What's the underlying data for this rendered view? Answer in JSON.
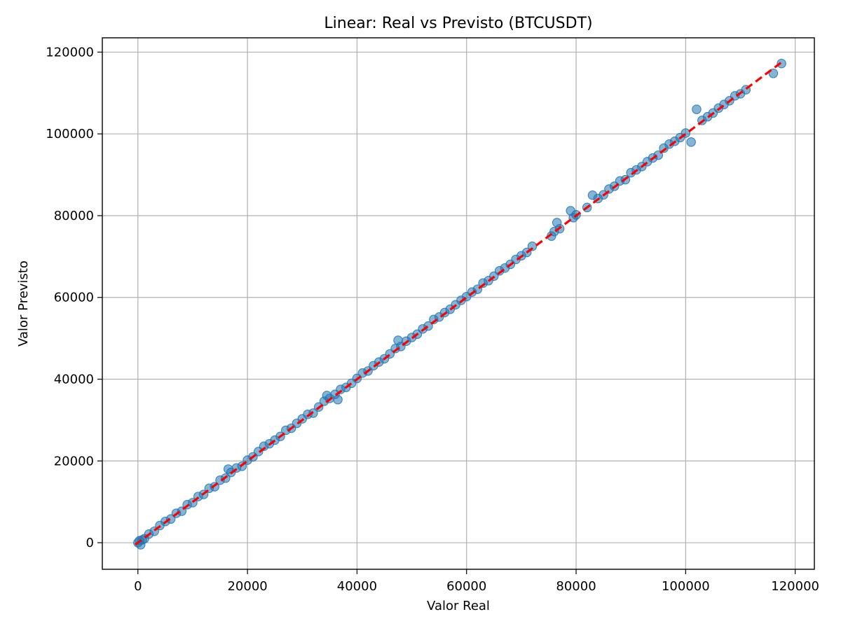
{
  "chart_data": {
    "type": "scatter",
    "title": "Linear: Real vs Previsto (BTCUSDT)",
    "xlabel": "Valor Real",
    "ylabel": "Valor Previsto",
    "xlim": [
      -6500,
      123500
    ],
    "ylim": [
      -6500,
      123500
    ],
    "xticks": [
      0,
      20000,
      40000,
      60000,
      80000,
      100000,
      120000
    ],
    "yticks": [
      0,
      20000,
      40000,
      60000,
      80000,
      100000,
      120000
    ],
    "xtick_labels": [
      "0",
      "20000",
      "40000",
      "60000",
      "80000",
      "100000",
      "120000"
    ],
    "ytick_labels": [
      "0",
      "20000",
      "40000",
      "60000",
      "80000",
      "100000",
      "120000"
    ],
    "grid": true,
    "colors": {
      "points": "#1f77b4",
      "reference_line": "#ff0000"
    },
    "series": [
      {
        "kind": "points",
        "points": [
          [
            0,
            0
          ],
          [
            300,
            500
          ],
          [
            500,
            -500
          ],
          [
            800,
            700
          ],
          [
            1200,
            1000
          ],
          [
            2000,
            2100
          ],
          [
            3000,
            2800
          ],
          [
            4000,
            4200
          ],
          [
            5000,
            5200
          ],
          [
            6000,
            5800
          ],
          [
            7000,
            7200
          ],
          [
            8000,
            7700
          ],
          [
            9000,
            9300
          ],
          [
            10000,
            9800
          ],
          [
            11000,
            11300
          ],
          [
            12000,
            11800
          ],
          [
            13000,
            13300
          ],
          [
            14000,
            13700
          ],
          [
            15000,
            15300
          ],
          [
            16000,
            15800
          ],
          [
            16500,
            18000
          ],
          [
            17000,
            17200
          ],
          [
            18000,
            18300
          ],
          [
            19000,
            18700
          ],
          [
            20000,
            20200
          ],
          [
            21000,
            21000
          ],
          [
            22000,
            22300
          ],
          [
            23000,
            23600
          ],
          [
            24000,
            24200
          ],
          [
            25000,
            25100
          ],
          [
            26000,
            26000
          ],
          [
            27000,
            27500
          ],
          [
            28000,
            28000
          ],
          [
            29000,
            29200
          ],
          [
            30000,
            30300
          ],
          [
            31000,
            31400
          ],
          [
            32000,
            31700
          ],
          [
            33000,
            33200
          ],
          [
            34000,
            34600
          ],
          [
            34500,
            36000
          ],
          [
            35000,
            35300
          ],
          [
            36000,
            36300
          ],
          [
            36500,
            35000
          ],
          [
            37000,
            37500
          ],
          [
            38000,
            38000
          ],
          [
            39000,
            39000
          ],
          [
            40000,
            40200
          ],
          [
            41000,
            41500
          ],
          [
            42000,
            42000
          ],
          [
            43000,
            43300
          ],
          [
            44000,
            44200
          ],
          [
            45000,
            45000
          ],
          [
            46000,
            46200
          ],
          [
            47000,
            47500
          ],
          [
            47500,
            49500
          ],
          [
            48000,
            48000
          ],
          [
            49000,
            49300
          ],
          [
            50000,
            50200
          ],
          [
            51000,
            51000
          ],
          [
            52000,
            52300
          ],
          [
            53000,
            53000
          ],
          [
            54000,
            54600
          ],
          [
            55000,
            55200
          ],
          [
            56000,
            56300
          ],
          [
            57000,
            57100
          ],
          [
            58000,
            58200
          ],
          [
            59000,
            59300
          ],
          [
            60000,
            60200
          ],
          [
            61000,
            61300
          ],
          [
            62000,
            62000
          ],
          [
            63000,
            63500
          ],
          [
            64000,
            64100
          ],
          [
            65000,
            65200
          ],
          [
            66000,
            66500
          ],
          [
            67000,
            67200
          ],
          [
            68000,
            68100
          ],
          [
            69000,
            69300
          ],
          [
            70000,
            70200
          ],
          [
            71000,
            71000
          ],
          [
            72000,
            72500
          ],
          [
            75500,
            75000
          ],
          [
            76000,
            76100
          ],
          [
            76500,
            78300
          ],
          [
            77000,
            76800
          ],
          [
            79000,
            81200
          ],
          [
            79500,
            79500
          ],
          [
            80000,
            80200
          ],
          [
            82000,
            82000
          ],
          [
            83000,
            85000
          ],
          [
            84000,
            84200
          ],
          [
            85000,
            85100
          ],
          [
            86000,
            86500
          ],
          [
            87000,
            87200
          ],
          [
            88000,
            88500
          ],
          [
            89000,
            88800
          ],
          [
            90000,
            90500
          ],
          [
            91000,
            91200
          ],
          [
            92000,
            92000
          ],
          [
            93000,
            93200
          ],
          [
            94000,
            94100
          ],
          [
            95000,
            94800
          ],
          [
            96000,
            96500
          ],
          [
            97000,
            97500
          ],
          [
            98000,
            98200
          ],
          [
            99000,
            99100
          ],
          [
            100000,
            100200
          ],
          [
            101000,
            98000
          ],
          [
            102000,
            106000
          ],
          [
            103000,
            103300
          ],
          [
            104000,
            104200
          ],
          [
            105000,
            105100
          ],
          [
            106000,
            106300
          ],
          [
            107000,
            107200
          ],
          [
            108000,
            108100
          ],
          [
            109000,
            109300
          ],
          [
            110000,
            109800
          ],
          [
            111000,
            110800
          ],
          [
            116000,
            114800
          ],
          [
            117500,
            117200
          ]
        ]
      },
      {
        "kind": "reference_line",
        "points": [
          [
            -500,
            -500
          ],
          [
            117500,
            117500
          ]
        ]
      }
    ]
  }
}
